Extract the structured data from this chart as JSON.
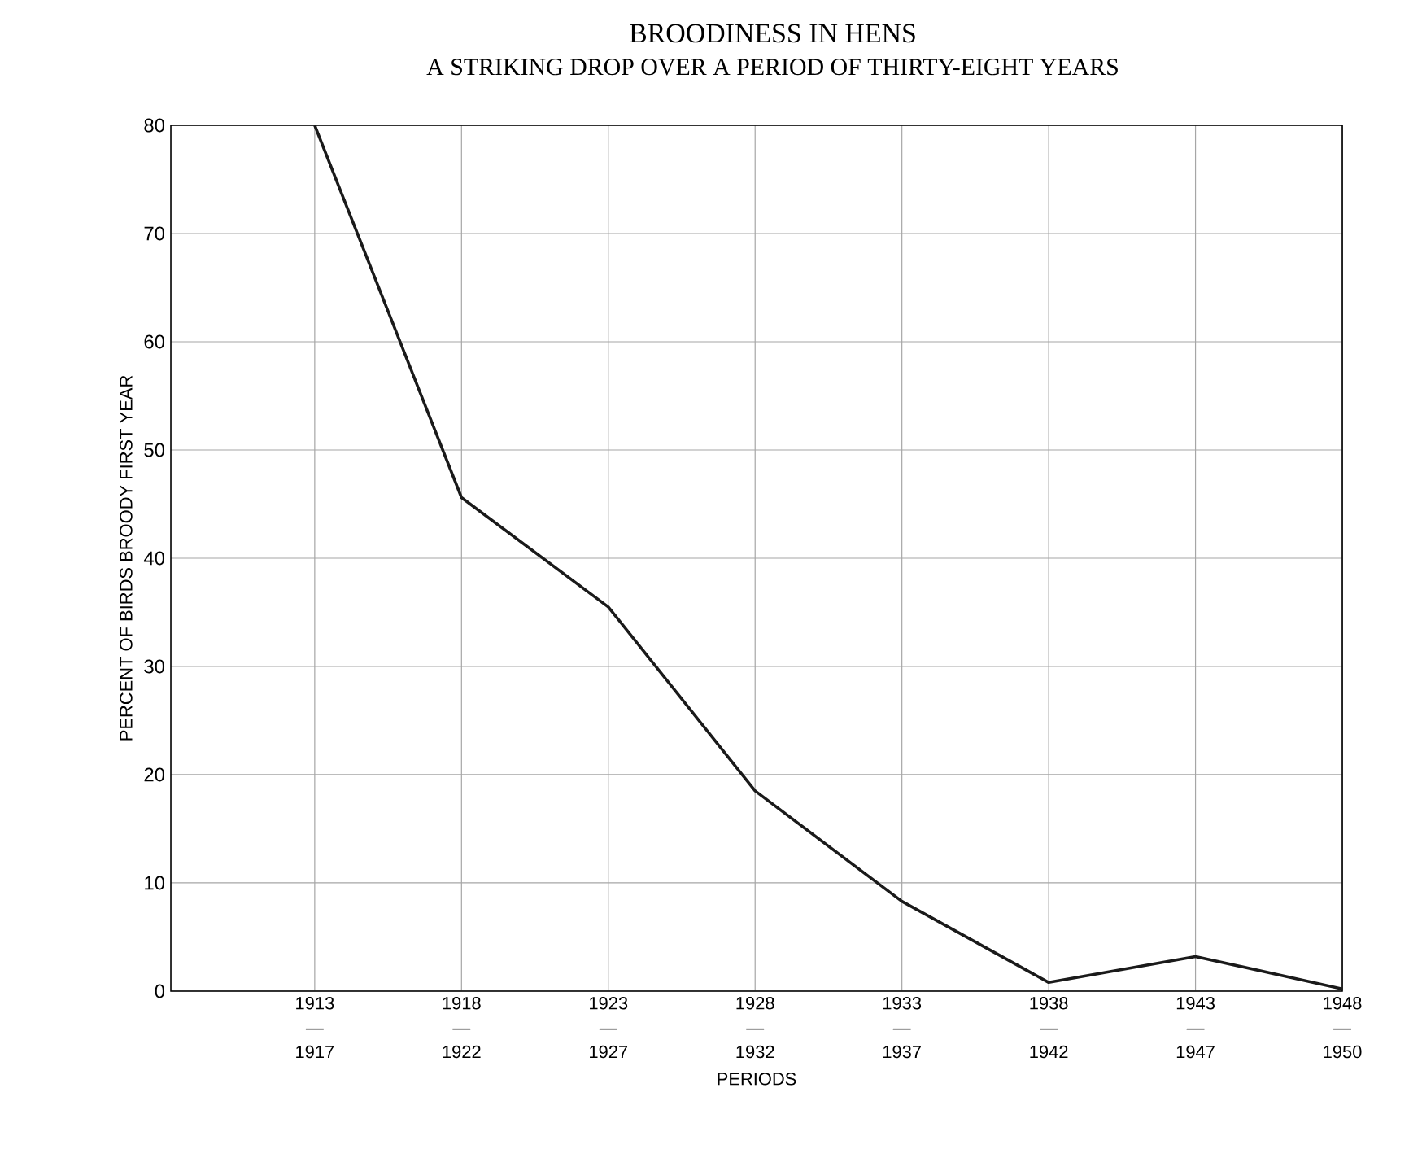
{
  "chart_data": {
    "type": "line",
    "title": "BROODINESS IN HENS",
    "subtitle": "A STRIKING DROP OVER A PERIOD OF THIRTY-EIGHT YEARS",
    "xlabel": "PERIODS",
    "ylabel": "PERCENT OF BIRDS BROODY FIRST YEAR",
    "categories": [
      "1913 — 1917",
      "1918 — 1922",
      "1923 — 1927",
      "1928 — 1932",
      "1933 — 1937",
      "1938 — 1942",
      "1943 — 1947",
      "1948 — 1950"
    ],
    "series": [
      {
        "color": "#1a1a1a",
        "values": [
          80,
          45.6,
          35.5,
          18.5,
          8.3,
          0.8,
          3.2,
          0.2
        ]
      }
    ],
    "ylim": [
      0,
      80
    ],
    "yticks": [
      0,
      10,
      20,
      30,
      40,
      50,
      60,
      70,
      80
    ],
    "grid": true,
    "marker": "none",
    "line_style": "solid"
  }
}
